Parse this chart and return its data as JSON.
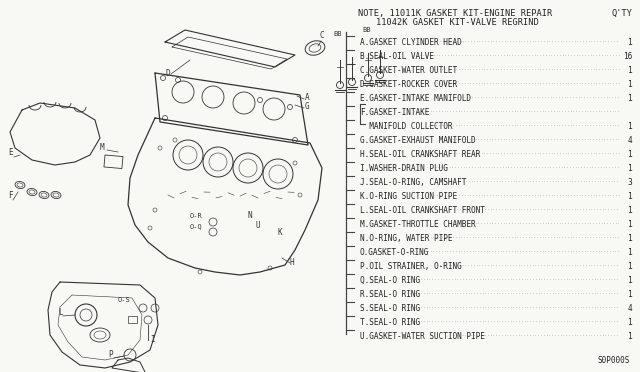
{
  "bg_color": "#f8f8f5",
  "title_line1": "NOTE, 11011K GASKET KIT-ENGINE REPAIR",
  "title_line2": "11042K GASKET KIT-VALVE REGRIND",
  "qty_header": "Q'TY",
  "parts": [
    {
      "label": "A",
      "desc": "GASKET CLYINDER HEAD",
      "qty": "1"
    },
    {
      "label": "B",
      "desc": "SEAL-OIL VALVE",
      "qty": "16"
    },
    {
      "label": "C",
      "desc": "GASKET-WATER OUTLET",
      "qty": "1"
    },
    {
      "label": "D",
      "desc": "GASKET-ROCKER COVER",
      "qty": "1"
    },
    {
      "label": "E",
      "desc": "GASKET-INTAKE MANIFOLD",
      "qty": "1"
    },
    {
      "label": "F",
      "desc": "GASKET-INTAKE",
      "qty": ""
    },
    {
      "label": "",
      "desc": "  MANIFOLD COLLECTOR",
      "qty": "1"
    },
    {
      "label": "G",
      "desc": "GASKET-EXHAUST MANIFOLD",
      "qty": "4"
    },
    {
      "label": "H",
      "desc": "SEAL-OIL CRANKSHAFT REAR",
      "qty": "1"
    },
    {
      "label": "I",
      "desc": "WASHER-DRAIN PLUG",
      "qty": "1"
    },
    {
      "label": "J",
      "desc": "SEAL-O-RING, CAMSHAFT",
      "qty": "3"
    },
    {
      "label": "K",
      "desc": "O-RING SUCTION PIPE",
      "qty": "1"
    },
    {
      "label": "L",
      "desc": "SEAL-OIL CRANKSHAFT FRONT",
      "qty": "1"
    },
    {
      "label": "M",
      "desc": "GASKET-THROTTLE CHAMBER",
      "qty": "1"
    },
    {
      "label": "N",
      "desc": "O-RING, WATER PIPE",
      "qty": "1"
    },
    {
      "label": "O",
      "desc": "GASKET-O-RING",
      "qty": "1"
    },
    {
      "label": "P",
      "desc": "OIL STRAINER, O-RING",
      "qty": "1"
    },
    {
      "label": "Q",
      "desc": "SEAL-O RING",
      "qty": "1"
    },
    {
      "label": "R",
      "desc": "SEAL-O RING",
      "qty": "1"
    },
    {
      "label": "S",
      "desc": "SEAL-O RING",
      "qty": "4"
    },
    {
      "label": "T",
      "desc": "SEAL-O RING",
      "qty": "1"
    },
    {
      "label": "U",
      "desc": "GASKET-WATER SUCTION PIPE",
      "qty": "1"
    }
  ],
  "figure_number": "S0P000S",
  "text_color": "#222222",
  "line_color": "#444444",
  "font_size_title": 6.2,
  "font_size_parts": 5.6,
  "diagram_color": "#333333"
}
